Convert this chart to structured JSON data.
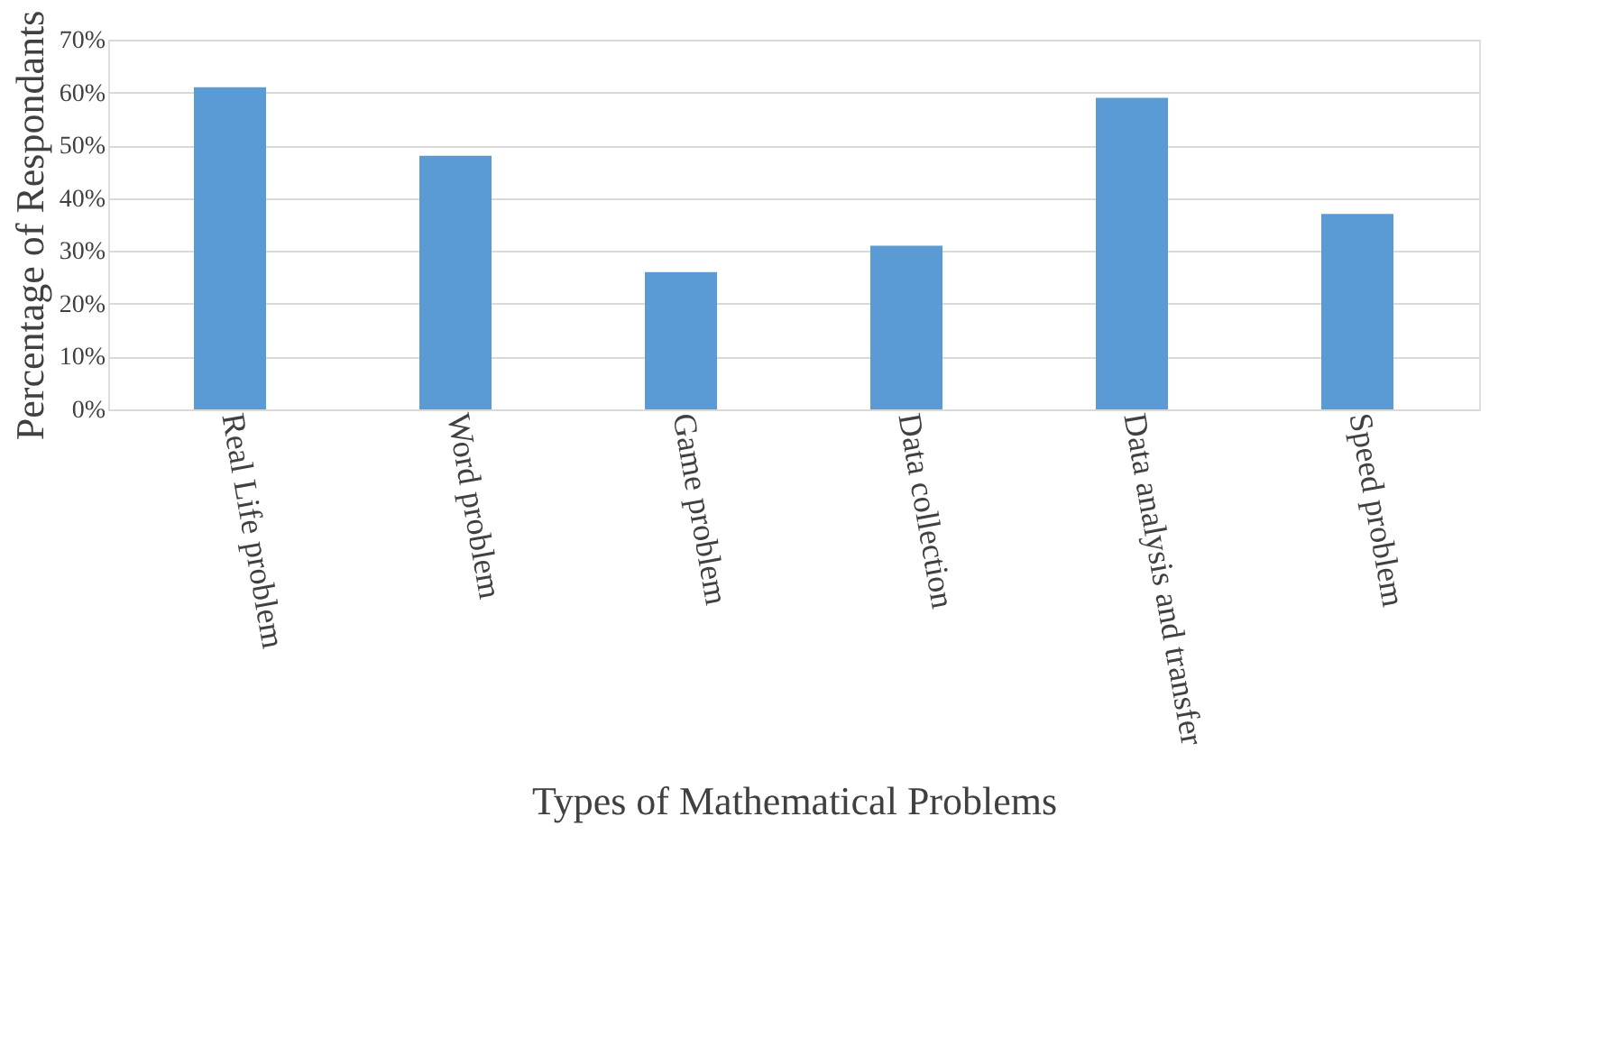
{
  "chart_data": {
    "type": "bar",
    "xlabel": "Types of Mathematical Problems",
    "ylabel": "Percentage of Respondants",
    "categories": [
      "Real Life problem",
      "Word problem",
      "Game problem",
      "Data collection",
      "Data analysis and transfer",
      "Speed problem"
    ],
    "values": [
      61,
      48,
      26,
      31,
      59,
      37
    ],
    "color": "#5b9bd5",
    "ylim": [
      0,
      70
    ],
    "yticks": [
      {
        "value": 0,
        "label": "0%"
      },
      {
        "value": 10,
        "label": "10%"
      },
      {
        "value": 20,
        "label": "20%"
      },
      {
        "value": 30,
        "label": "30%"
      },
      {
        "value": 40,
        "label": "40%"
      },
      {
        "value": 50,
        "label": "50%"
      },
      {
        "value": 60,
        "label": "60%"
      },
      {
        "value": 70,
        "label": "70%"
      }
    ],
    "grid": "y"
  }
}
